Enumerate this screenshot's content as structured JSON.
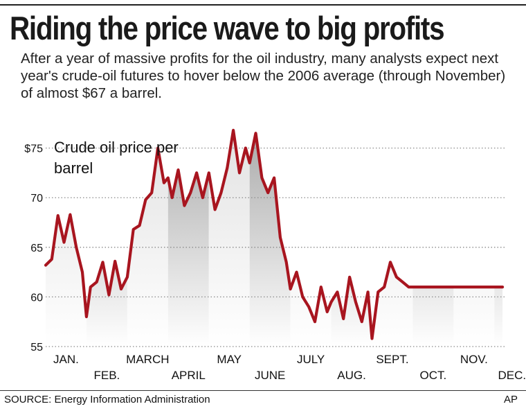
{
  "title": "Riding the price wave to big profits",
  "subtitle": "After a year of massive profits for the oil industry, many analysts expect next year's crude-oil futures to hover below the 2006 average (through November) of almost $67 a barrel.",
  "source": "SOURCE: Energy Information Administration",
  "credit": "AP",
  "colors": {
    "line": "#a8151f",
    "band_dark": "#aaaaaa",
    "band_light": "#e2e2e2",
    "grid": "#8a8a8a"
  },
  "chart_data": {
    "type": "area",
    "series_label": "Crude oil price per barrel",
    "ylim": [
      55,
      77
    ],
    "yticks": [
      {
        "value": 75,
        "label": "$75"
      },
      {
        "value": 70,
        "label": "70"
      },
      {
        "value": 65,
        "label": "65"
      },
      {
        "value": 60,
        "label": "60"
      },
      {
        "value": 55,
        "label": "55"
      }
    ],
    "months": [
      "JAN.",
      "FEB.",
      "MARCH",
      "APRIL",
      "MAY",
      "JUNE",
      "JULY",
      "AUG.",
      "SEPT.",
      "OCT.",
      "NOV.",
      "DEC."
    ],
    "grid": "dotted horizontal",
    "x": [
      0.0,
      0.15,
      0.3,
      0.45,
      0.6,
      0.75,
      0.9,
      1.0,
      1.1,
      1.25,
      1.4,
      1.55,
      1.7,
      1.85,
      2.0,
      2.15,
      2.3,
      2.45,
      2.6,
      2.75,
      2.9,
      3.0,
      3.1,
      3.25,
      3.4,
      3.55,
      3.7,
      3.85,
      4.0,
      4.15,
      4.3,
      4.45,
      4.6,
      4.75,
      4.9,
      5.0,
      5.15,
      5.3,
      5.45,
      5.6,
      5.75,
      5.9,
      6.0,
      6.15,
      6.3,
      6.45,
      6.6,
      6.75,
      6.9,
      7.0,
      7.15,
      7.3,
      7.45,
      7.6,
      7.75,
      7.9,
      8.0,
      8.15,
      8.3,
      8.45,
      8.6,
      8.75,
      8.9,
      9.0,
      9.15,
      9.3,
      9.45,
      9.6,
      9.75,
      9.9,
      10.0,
      10.15,
      10.3,
      10.45,
      10.6,
      10.75,
      10.9,
      11.0,
      11.1,
      11.2
    ],
    "values": [
      63.2,
      63.8,
      68.2,
      65.5,
      68.3,
      65.0,
      62.5,
      58.0,
      61.0,
      61.5,
      63.5,
      60.2,
      63.6,
      60.8,
      62.0,
      66.8,
      67.2,
      69.8,
      70.5,
      75.0,
      71.5,
      72.0,
      70.0,
      72.8,
      69.2,
      70.5,
      72.5,
      70.0,
      72.5,
      68.8,
      70.5,
      73.0,
      76.8,
      72.5,
      75.0,
      73.5,
      76.5,
      72.0,
      70.5,
      72.0,
      66.0,
      63.5,
      60.8,
      62.5,
      60.0,
      59.0,
      57.5,
      61.0,
      58.5,
      59.5,
      60.5,
      57.8,
      62.0,
      59.5,
      57.5,
      60.5,
      55.8,
      60.5,
      61.0,
      63.5,
      62.0,
      61.5,
      61.0,
      61.0,
      61.0,
      61.0,
      61.0,
      61.0,
      61.0,
      61.0,
      61.0,
      61.0,
      61.0,
      61.0,
      61.0,
      61.0,
      61.0,
      61.0,
      61.0,
      61.0
    ]
  }
}
